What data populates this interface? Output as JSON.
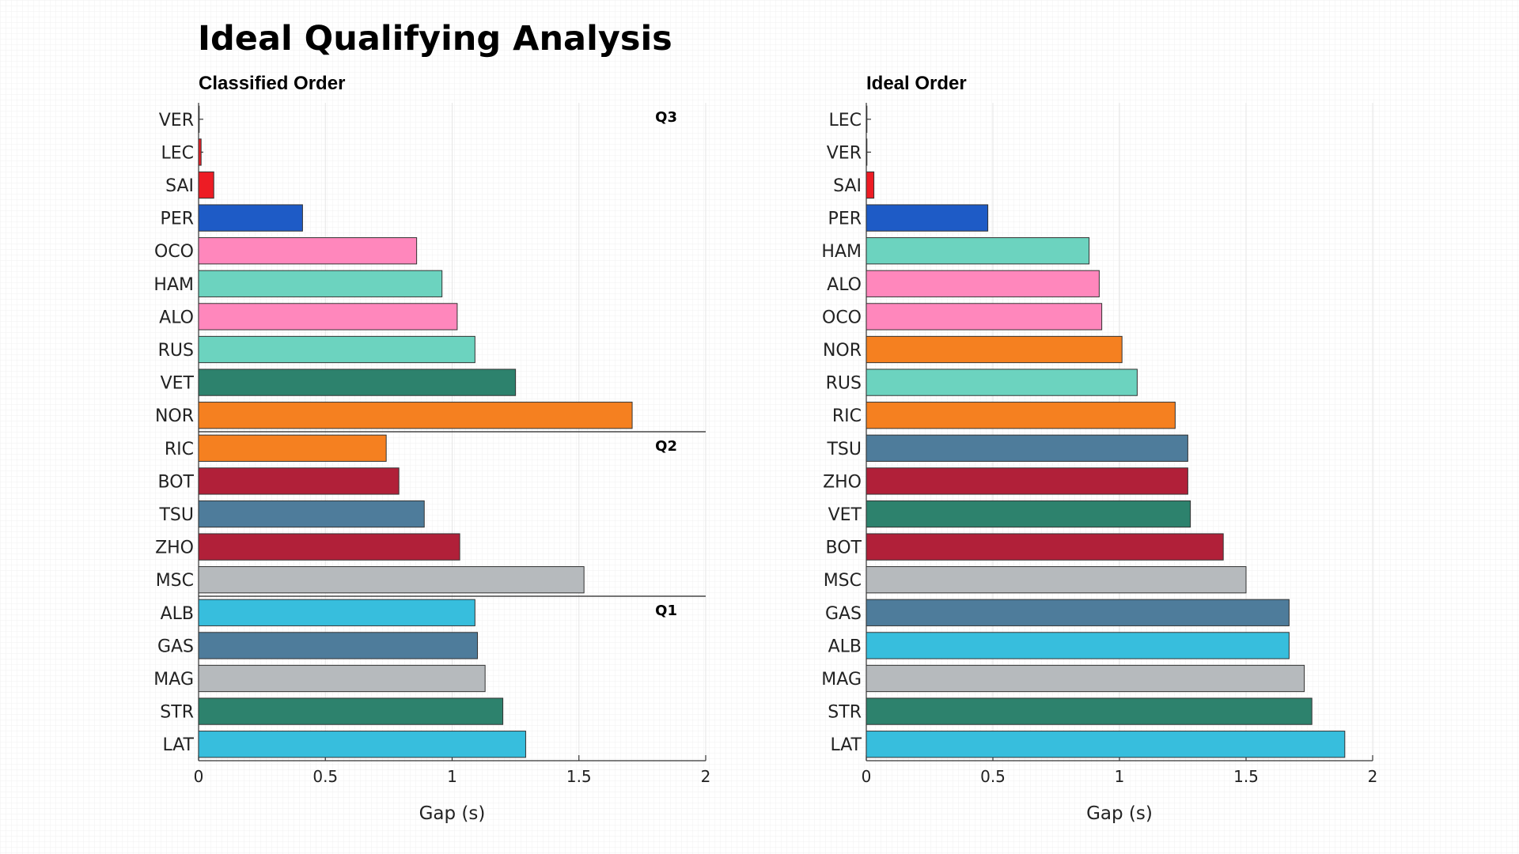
{
  "title": "Ideal Qualifying Analysis",
  "chart_data": [
    {
      "type": "bar",
      "orientation": "horizontal",
      "title": "Classified Order",
      "xlabel": "Gap (s)",
      "ylabel": "",
      "xlim": [
        0,
        2
      ],
      "xticks": [
        "0",
        "0.5",
        "1",
        "1.5",
        "2"
      ],
      "categories": [
        "VER",
        "LEC",
        "SAI",
        "PER",
        "OCO",
        "HAM",
        "ALO",
        "RUS",
        "VET",
        "NOR",
        "RIC",
        "BOT",
        "TSU",
        "ZHO",
        "MSC",
        "ALB",
        "GAS",
        "MAG",
        "STR",
        "LAT"
      ],
      "values": [
        0.0,
        0.01,
        0.06,
        0.41,
        0.86,
        0.96,
        1.02,
        1.09,
        1.25,
        1.71,
        0.74,
        0.79,
        0.89,
        1.03,
        1.52,
        1.09,
        1.1,
        1.13,
        1.2,
        1.29
      ],
      "colors": [
        "#1e5bc6",
        "#ed1c24",
        "#ed1c24",
        "#1e5bc6",
        "#ff87bc",
        "#6cd3bf",
        "#ff87bc",
        "#6cd3bf",
        "#2d826d",
        "#f58020",
        "#f58020",
        "#b12039",
        "#4e7c9b",
        "#b12039",
        "#b6babd",
        "#37bedd",
        "#4e7c9b",
        "#b6babd",
        "#2d826d",
        "#37bedd"
      ],
      "segments": [
        {
          "label": "Q3",
          "start_index": 0
        },
        {
          "label": "Q2",
          "start_index": 10
        },
        {
          "label": "Q1",
          "start_index": 15
        }
      ]
    },
    {
      "type": "bar",
      "orientation": "horizontal",
      "title": "Ideal Order",
      "xlabel": "Gap (s)",
      "ylabel": "",
      "xlim": [
        0,
        2
      ],
      "xticks": [
        "0",
        "0.5",
        "1",
        "1.5",
        "2"
      ],
      "categories": [
        "LEC",
        "VER",
        "SAI",
        "PER",
        "HAM",
        "ALO",
        "OCO",
        "NOR",
        "RUS",
        "RIC",
        "TSU",
        "ZHO",
        "VET",
        "BOT",
        "MSC",
        "GAS",
        "ALB",
        "MAG",
        "STR",
        "LAT"
      ],
      "values": [
        0.0,
        0.0,
        0.03,
        0.48,
        0.88,
        0.92,
        0.93,
        1.01,
        1.07,
        1.22,
        1.27,
        1.27,
        1.28,
        1.41,
        1.5,
        1.67,
        1.67,
        1.73,
        1.76,
        1.89
      ],
      "colors": [
        "#ed1c24",
        "#1e5bc6",
        "#ed1c24",
        "#1e5bc6",
        "#6cd3bf",
        "#ff87bc",
        "#ff87bc",
        "#f58020",
        "#6cd3bf",
        "#f58020",
        "#4e7c9b",
        "#b12039",
        "#2d826d",
        "#b12039",
        "#b6babd",
        "#4e7c9b",
        "#37bedd",
        "#b6babd",
        "#2d826d",
        "#37bedd"
      ],
      "segments": []
    }
  ]
}
